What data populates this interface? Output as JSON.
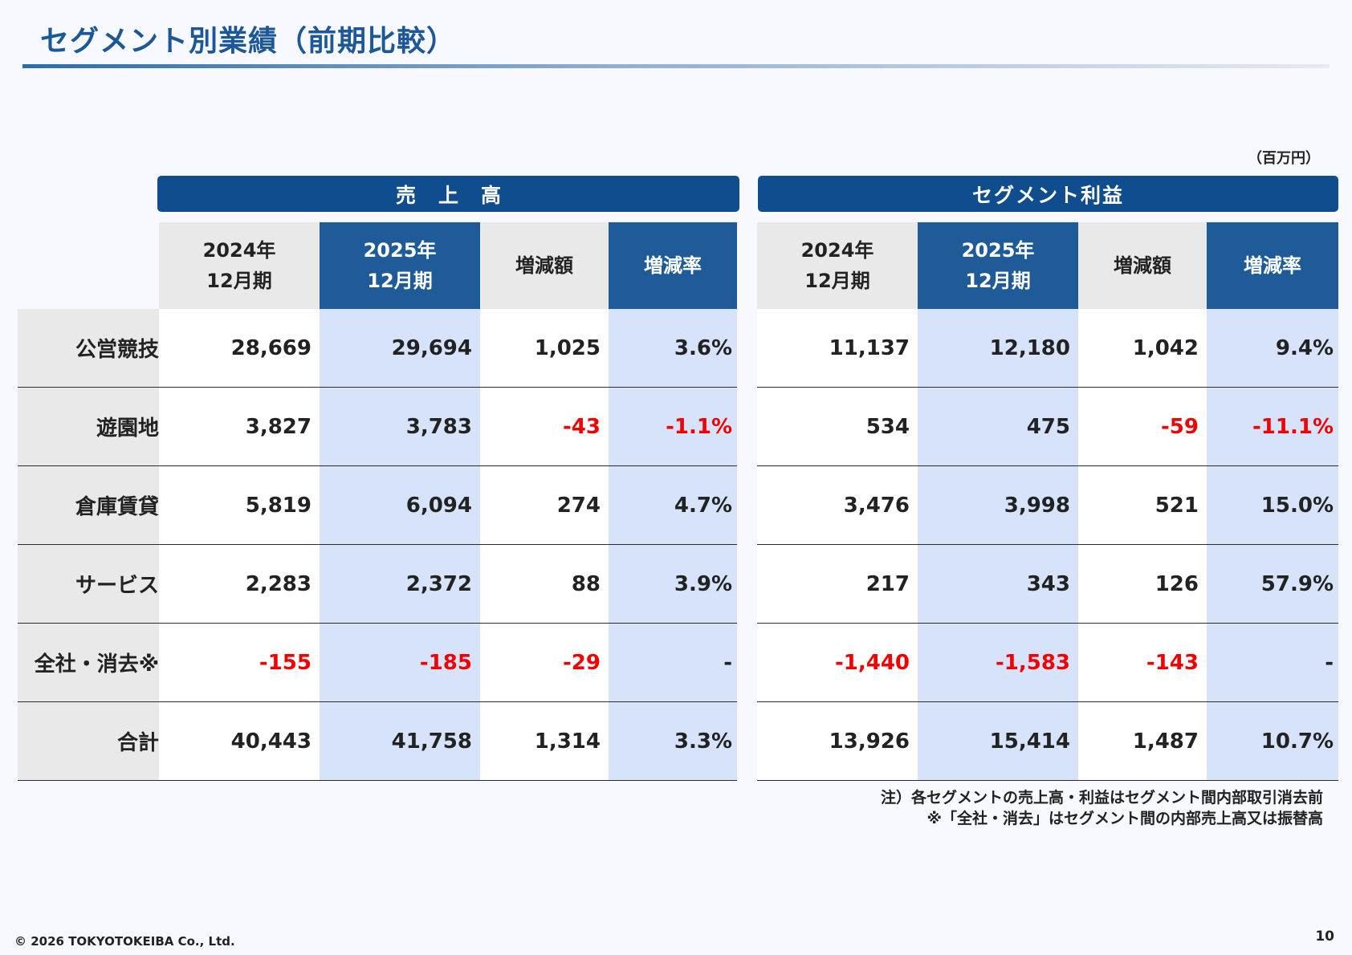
{
  "title": "セグメント別業績（前期比較）",
  "unit": "（百万円）",
  "sales": {
    "heading": "売上高",
    "headers": [
      {
        "line1": "2024年",
        "line2": "12月期"
      },
      {
        "line1": "2025年",
        "line2": "12月期"
      },
      {
        "line1": "増減額",
        "line2": ""
      },
      {
        "line1": "増減率",
        "line2": ""
      }
    ],
    "rows": [
      [
        "28,669",
        "29,694",
        "1,025",
        "3.6%"
      ],
      [
        "3,827",
        "3,783",
        "-43",
        "-1.1%"
      ],
      [
        "5,819",
        "6,094",
        "274",
        "4.7%"
      ],
      [
        "2,283",
        "2,372",
        "88",
        "3.9%"
      ],
      [
        "-155",
        "-185",
        "-29",
        "-"
      ],
      [
        "40,443",
        "41,758",
        "1,314",
        "3.3%"
      ]
    ]
  },
  "profit": {
    "heading": "セグメント利益",
    "headers": [
      {
        "line1": "2024年",
        "line2": "12月期"
      },
      {
        "line1": "2025年",
        "line2": "12月期"
      },
      {
        "line1": "増減額",
        "line2": ""
      },
      {
        "line1": "増減率",
        "line2": ""
      }
    ],
    "rows": [
      [
        "11,137",
        "12,180",
        "1,042",
        "9.4%"
      ],
      [
        "534",
        "475",
        "-59",
        "-11.1%"
      ],
      [
        "3,476",
        "3,998",
        "521",
        "15.0%"
      ],
      [
        "217",
        "343",
        "126",
        "57.9%"
      ],
      [
        "-1,440",
        "-1,583",
        "-143",
        "-"
      ],
      [
        "13,926",
        "15,414",
        "1,487",
        "10.7%"
      ]
    ]
  },
  "row_labels": [
    "公営競技",
    "遊園地",
    "倉庫賃貸",
    "サービス",
    "全社・消去※",
    "合計"
  ],
  "notes": [
    "注）各セグメントの売上高・利益はセグメント間内部取引消去前",
    "※「全社・消去」はセグメント間の内部売上高又は振替高"
  ],
  "copyright": "© 2026 TOKYOTOKEIBA Co., Ltd.",
  "page_number": "10",
  "colors": {
    "title": "#1c5898",
    "group_bar": "#0f4d8f",
    "header_dark": "#1f5a99",
    "header_light": "#e9e9e9",
    "highlight_col": "#d6e3fa",
    "negative": "#f20000"
  }
}
